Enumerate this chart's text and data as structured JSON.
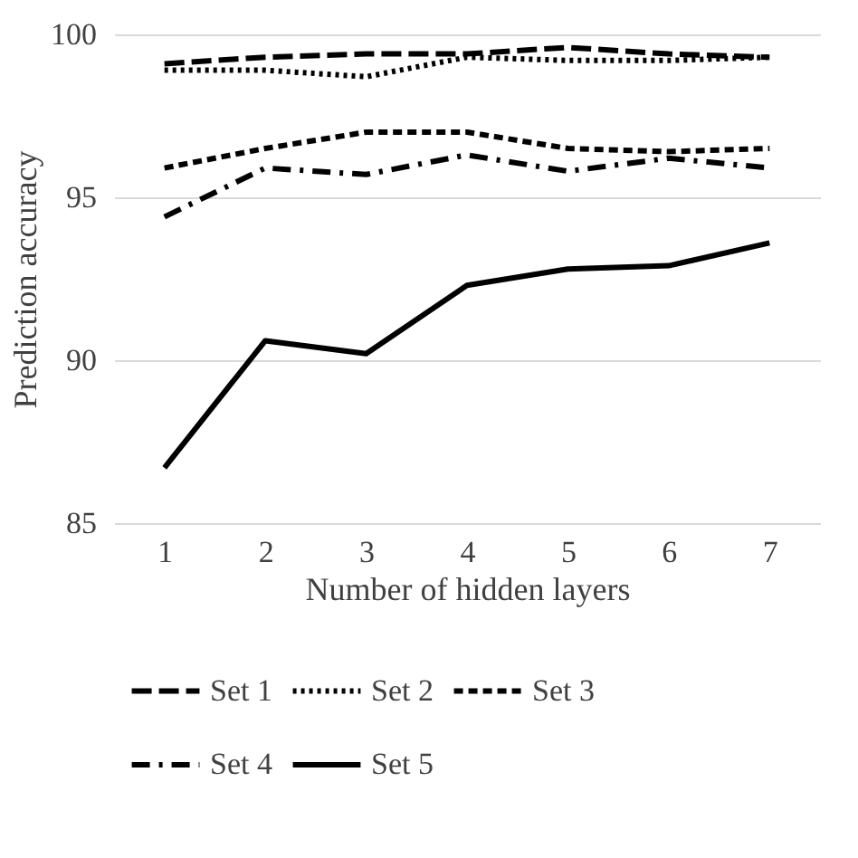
{
  "chart_data": {
    "type": "line",
    "xlabel": "Number of hidden layers",
    "ylabel": "Prediction accuracy",
    "categories": [
      "1",
      "2",
      "3",
      "4",
      "5",
      "6",
      "7"
    ],
    "series": [
      {
        "name": "Set 1",
        "color": "#000000",
        "line_style": "longdash",
        "values": [
          99.1,
          99.3,
          99.4,
          99.4,
          99.6,
          99.4,
          99.3
        ]
      },
      {
        "name": "Set 2",
        "color": "#000000",
        "line_style": "dotted",
        "values": [
          98.9,
          98.9,
          98.7,
          99.3,
          99.2,
          99.2,
          99.3
        ]
      },
      {
        "name": "Set 3",
        "color": "#000000",
        "line_style": "dashed",
        "values": [
          95.9,
          96.5,
          97.0,
          97.0,
          96.5,
          96.4,
          96.5
        ]
      },
      {
        "name": "Set 4",
        "color": "#000000",
        "line_style": "dashdot",
        "values": [
          94.4,
          95.9,
          95.7,
          96.3,
          95.8,
          96.2,
          95.9
        ]
      },
      {
        "name": "Set 5",
        "color": "#000000",
        "line_style": "solid",
        "values": [
          86.7,
          90.6,
          90.2,
          92.3,
          92.8,
          92.9,
          93.6
        ]
      }
    ],
    "ylim": [
      85,
      100
    ],
    "yticks": [
      85,
      90,
      95,
      100
    ],
    "grid": "y",
    "legend": "bottom",
    "marker": "none"
  }
}
